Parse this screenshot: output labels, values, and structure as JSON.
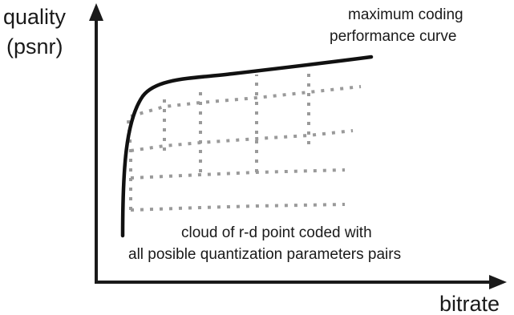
{
  "axes": {
    "y_label_line1": "quality",
    "y_label_line2": "(psnr)",
    "x_label": "bitrate"
  },
  "curve_label": {
    "line1": "maximum coding",
    "line2": "performance curve"
  },
  "cloud_label": {
    "line1": "cloud of r-d point coded with",
    "line2": "all posible quantization parameters pairs"
  },
  "colors": {
    "axis": "#1a1a1a",
    "curve": "#111111",
    "cloud": "#9a9a9a"
  }
}
